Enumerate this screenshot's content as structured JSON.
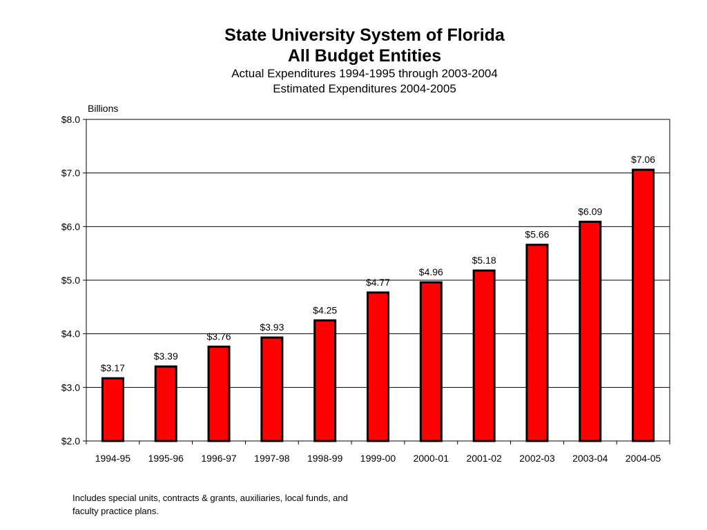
{
  "chart_data": {
    "type": "bar",
    "title": "State University System of Florida",
    "title_line2": "All Budget Entities",
    "subtitle": "Actual Expenditures 1994-1995 through 2003-2004",
    "subtitle_line2": "Estimated Expenditures 2004-2005",
    "ylabel": "Billions",
    "xlabel": "",
    "categories": [
      "1994-95",
      "1995-96",
      "1996-97",
      "1997-98",
      "1998-99",
      "1999-00",
      "2000-01",
      "2001-02",
      "2002-03",
      "2003-04",
      "2004-05"
    ],
    "values": [
      3.17,
      3.39,
      3.76,
      3.93,
      4.25,
      4.77,
      4.96,
      5.18,
      5.66,
      6.09,
      7.06
    ],
    "data_labels": [
      "$3.17",
      "$3.39",
      "$3.76",
      "$3.93",
      "$4.25",
      "$4.77",
      "$4.96",
      "$5.18",
      "$5.66",
      "$6.09",
      "$7.06"
    ],
    "ylim": [
      2.0,
      8.0
    ],
    "yticks": [
      2.0,
      3.0,
      4.0,
      5.0,
      6.0,
      7.0,
      8.0
    ],
    "ytick_labels": [
      "$2.0",
      "$3.0",
      "$4.0",
      "$5.0",
      "$6.0",
      "$7.0",
      "$8.0"
    ],
    "grid": true,
    "legend": "none",
    "bar_color": "#ff0000",
    "bar_edge_color": "#000000"
  },
  "footnote": {
    "line1": "Includes special units, contracts & grants, auxiliaries, local funds, and",
    "line2": "faculty practice plans."
  }
}
